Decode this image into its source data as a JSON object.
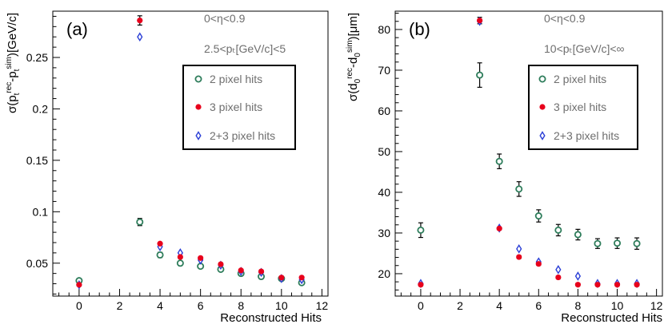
{
  "colors": {
    "hits2": "#2e7d5b",
    "hits3": "#e8001c",
    "hits23": "#2b3fd6"
  },
  "chart_data": [
    {
      "type": "scatter",
      "panel_label": "(a)",
      "xlabel": "Reconstructed Hits",
      "ylabel": "σ(pₜ^rec - pₜ^sim)[GeV/c]",
      "ylabel_parts": {
        "pre": "σ(p",
        "sub1": "t",
        "sup1": "rec",
        "mid": "-p",
        "sub2": "t",
        "sup2": "sim",
        "post": ")[GeV/c]"
      },
      "xlim": [
        -1.3,
        12.3
      ],
      "ylim": [
        0.018,
        0.295
      ],
      "xticks": [
        0,
        2,
        4,
        6,
        8,
        10,
        12
      ],
      "yticks": [
        0.05,
        0.1,
        0.15,
        0.2,
        0.25
      ],
      "ytick_labels": [
        "0.05",
        "0.1",
        "0.15",
        "0.2",
        "0.25"
      ],
      "annotations": [
        "0<η<0.9",
        "2.5<pₜ[GeV/c]<5"
      ],
      "series": [
        {
          "name": "2 pixel hits",
          "marker": "open-circle",
          "x": [
            0,
            3,
            4,
            5,
            6,
            7,
            8,
            9,
            10,
            11
          ],
          "y": [
            0.033,
            0.09,
            0.058,
            0.05,
            0.047,
            0.044,
            0.04,
            0.037,
            0.035,
            0.031
          ],
          "err": [
            0.001,
            0.0035,
            0.0025,
            0.001,
            0.001,
            0.001,
            0.001,
            0.001,
            0.001,
            0.001
          ]
        },
        {
          "name": "3 pixel hits",
          "marker": "filled-circle",
          "x": [
            0,
            3,
            4,
            5,
            6,
            7,
            8,
            9,
            10,
            11
          ],
          "y": [
            0.029,
            0.286,
            0.069,
            0.056,
            0.055,
            0.049,
            0.043,
            0.042,
            0.036,
            0.036
          ],
          "err": [
            0.001,
            0.0045,
            0.001,
            0.001,
            0.001,
            0.001,
            0.001,
            0.001,
            0.001,
            0.001
          ]
        },
        {
          "name": "2+3 pixel hits",
          "marker": "open-diamond",
          "x": [
            0,
            3,
            4,
            5,
            6,
            7,
            8,
            9,
            10,
            11
          ],
          "y": [
            0.029,
            0.27,
            0.066,
            0.06,
            0.053,
            0.048,
            0.042,
            0.041,
            0.035,
            0.034
          ],
          "err": [
            0.001,
            0.003,
            0.001,
            0.001,
            0.001,
            0.001,
            0.001,
            0.001,
            0.001,
            0.001
          ]
        }
      ]
    },
    {
      "type": "scatter",
      "panel_label": "(b)",
      "xlabel": "Reconstructed Hits",
      "ylabel": "σ(d₀^rec - d₀^sim)[μm]",
      "ylabel_parts": {
        "pre": "σ(d",
        "sub1": "0",
        "sup1": "rec",
        "mid": "-d",
        "sub2": "0",
        "sup2": "sim",
        "post": ")[μm]"
      },
      "xlim": [
        -1.3,
        12.3
      ],
      "ylim": [
        14.5,
        84.5
      ],
      "xticks": [
        0,
        2,
        4,
        6,
        8,
        10,
        12
      ],
      "yticks": [
        20,
        30,
        40,
        50,
        60,
        70,
        80
      ],
      "ytick_labels": [
        "20",
        "30",
        "40",
        "50",
        "60",
        "70",
        "80"
      ],
      "annotations": [
        "0<η<0.9",
        "10<pₜ[GeV/c]<∞"
      ],
      "series": [
        {
          "name": "2 pixel hits",
          "marker": "open-circle",
          "x": [
            0,
            3,
            4,
            5,
            6,
            7,
            8,
            9,
            10,
            11
          ],
          "y": [
            30.7,
            68.8,
            47.6,
            40.8,
            34.2,
            30.7,
            29.6,
            27.4,
            27.5,
            27.4
          ],
          "err": [
            1.8,
            3.0,
            1.8,
            1.8,
            1.5,
            1.4,
            1.3,
            1.2,
            1.3,
            1.4
          ]
        },
        {
          "name": "3 pixel hits",
          "marker": "filled-circle",
          "x": [
            0,
            3,
            4,
            5,
            6,
            7,
            8,
            9,
            10,
            11
          ],
          "y": [
            17.3,
            82.2,
            31.1,
            24.1,
            22.4,
            19.1,
            17.3,
            17.3,
            17.3,
            17.3
          ],
          "err": [
            0.3,
            0.8,
            0.3,
            0.3,
            0.3,
            0.3,
            0.3,
            0.3,
            0.3,
            0.3
          ]
        },
        {
          "name": "2+3 pixel hits",
          "marker": "open-diamond",
          "x": [
            0,
            3,
            4,
            5,
            6,
            7,
            8,
            9,
            10,
            11
          ],
          "y": [
            17.6,
            82.0,
            31.2,
            26.1,
            22.9,
            21.0,
            19.4,
            17.6,
            17.6,
            17.6
          ],
          "err": [
            0.3,
            0.8,
            0.3,
            0.3,
            0.3,
            0.3,
            0.3,
            0.3,
            0.3,
            0.3
          ]
        }
      ]
    }
  ]
}
